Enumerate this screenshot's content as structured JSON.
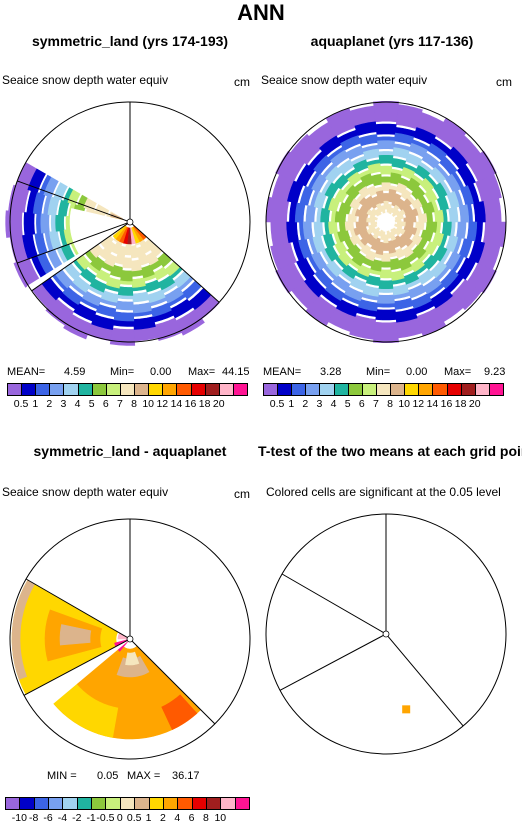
{
  "figure": {
    "title": "ANN"
  },
  "panels": [
    {
      "id": "p1",
      "title": "symmetric_land (yrs 174-193)",
      "subtitle": "Seaice snow depth water equiv",
      "units": "cm",
      "stats": {
        "mean_label": "MEAN=",
        "mean": "4.59",
        "min_label": "Min=",
        "min": "0.00",
        "max_label": "Max=",
        "max": "44.15"
      }
    },
    {
      "id": "p2",
      "title": "aquaplanet (yrs 117-136)",
      "subtitle": "Seaice snow depth water equiv",
      "units": "cm",
      "stats": {
        "mean_label": "MEAN=",
        "mean": "3.28",
        "min_label": "Min=",
        "min": "0.00",
        "max_label": "Max=",
        "max": "9.23"
      }
    },
    {
      "id": "p3",
      "title": "symmetric_land - aquaplanet",
      "subtitle": "Seaice snow depth water equiv",
      "units": "cm",
      "stats": {
        "min_label": "MIN =",
        "min": "0.05",
        "max_label": "MAX =",
        "max": "36.17"
      }
    },
    {
      "id": "p4",
      "title": "T-test of the two means at each grid point",
      "subtitle": "Colored cells are significant at the 0.05 level"
    }
  ],
  "colorbars": {
    "snow": {
      "colors": [
        "#9966dd",
        "#0000c8",
        "#3c64e6",
        "#78a0f0",
        "#a0d2f0",
        "#20b4a0",
        "#8cc83c",
        "#c8f07c",
        "#f5e6be",
        "#dcb48c",
        "#ffd700",
        "#ffa500",
        "#ff5a00",
        "#e60000",
        "#a01e1e",
        "#ffb4c8",
        "#ff1493"
      ],
      "labels": [
        "0.5",
        "1",
        "2",
        "3",
        "4",
        "5",
        "6",
        "7",
        "8",
        "10",
        "12",
        "14",
        "16",
        "18",
        "20"
      ]
    },
    "diff": {
      "colors": [
        "#9966dd",
        "#0000c8",
        "#3c64e6",
        "#78a0f0",
        "#a0d2f0",
        "#20b4a0",
        "#8cc83c",
        "#c8f07c",
        "#f5e6be",
        "#dcb48c",
        "#ffd700",
        "#ffa500",
        "#ff5a00",
        "#e60000",
        "#a01e1e",
        "#ffb4c8",
        "#ff1493"
      ],
      "labels": [
        "-10",
        "-8",
        "-6",
        "-4",
        "-2",
        "-1",
        "-0.5",
        "0",
        "0.5",
        "1",
        "2",
        "4",
        "6",
        "8",
        "10"
      ]
    }
  },
  "chart_data": [
    {
      "type": "heatmap",
      "projection": "polar stereographic",
      "title": "symmetric_land (yrs 174-193)",
      "subtitle": "Seaice snow depth water equiv",
      "units": "cm",
      "mean": 4.59,
      "min": 0.0,
      "max": 44.15,
      "levels": [
        0.5,
        1,
        2,
        3,
        4,
        5,
        6,
        7,
        8,
        10,
        12,
        14,
        16,
        18,
        20
      ]
    },
    {
      "type": "heatmap",
      "projection": "polar stereographic",
      "title": "aquaplanet (yrs 117-136)",
      "subtitle": "Seaice snow depth water equiv",
      "units": "cm",
      "mean": 3.28,
      "min": 0.0,
      "max": 9.23,
      "levels": [
        0.5,
        1,
        2,
        3,
        4,
        5,
        6,
        7,
        8,
        10,
        12,
        14,
        16,
        18,
        20
      ]
    },
    {
      "type": "heatmap",
      "projection": "polar stereographic",
      "title": "symmetric_land - aquaplanet",
      "subtitle": "Seaice snow depth water equiv",
      "units": "cm",
      "min": 0.05,
      "max": 36.17,
      "levels": [
        -10,
        -8,
        -6,
        -4,
        -2,
        -1,
        -0.5,
        0,
        0.5,
        1,
        2,
        4,
        6,
        8,
        10
      ]
    },
    {
      "type": "heatmap",
      "projection": "polar stereographic",
      "title": "T-test of the two means at each grid point",
      "subtitle": "Colored cells are significant at the 0.05 level",
      "significance_level": 0.05
    }
  ]
}
